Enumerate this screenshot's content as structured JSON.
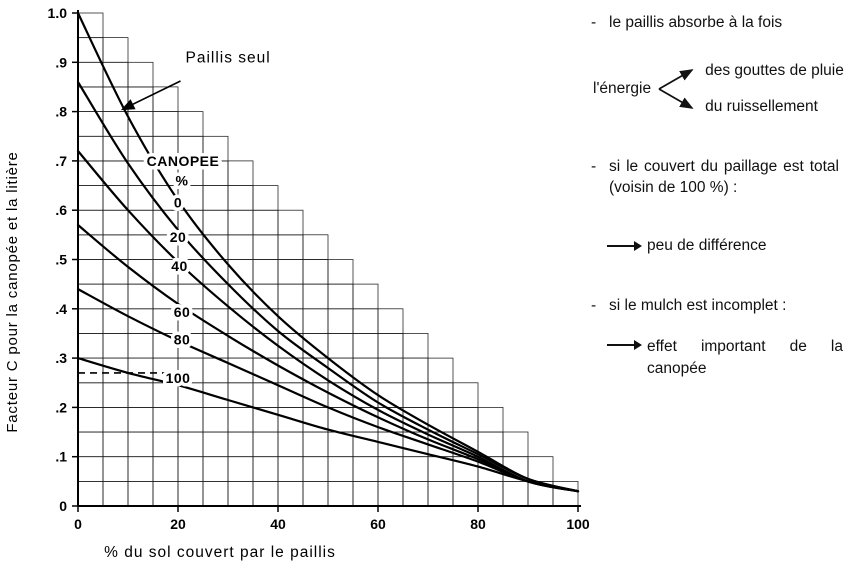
{
  "chart_data": {
    "type": "line",
    "title": "",
    "xlabel": "% du sol couvert par le paillis",
    "ylabel": "Facteur C pour la canopée et la litière",
    "xlim": [
      0,
      100
    ],
    "ylim": [
      0,
      1
    ],
    "grid": {
      "style": "stair-step",
      "x_step": 5,
      "y_step": 0.05
    },
    "x_ticks": {
      "values": [
        0,
        20,
        40,
        60,
        80,
        100
      ],
      "labels": [
        "0",
        "20",
        "40",
        "60",
        "80",
        "100"
      ]
    },
    "y_ticks": {
      "values": [
        0,
        0.1,
        0.2,
        0.3,
        0.4,
        0.5,
        0.6,
        0.7,
        0.8,
        0.9,
        1
      ],
      "labels": [
        "0",
        ".1",
        ".2",
        ".3",
        ".4",
        ".5",
        ".6",
        ".7",
        ".8",
        ".9",
        "1.0"
      ]
    },
    "x": [
      0,
      10,
      20,
      30,
      40,
      50,
      60,
      70,
      80,
      90,
      100
    ],
    "series": [
      {
        "name": "Paillis seul (canopée 0 %)",
        "values": [
          1.0,
          0.79,
          0.62,
          0.49,
          0.385,
          0.3,
          0.225,
          0.165,
          0.11,
          0.055,
          0.03
        ]
      },
      {
        "name": "Canopée 20 %",
        "values": [
          0.86,
          0.695,
          0.56,
          0.45,
          0.355,
          0.28,
          0.21,
          0.155,
          0.105,
          0.055,
          0.03
        ]
      },
      {
        "name": "Canopée 40 %",
        "values": [
          0.72,
          0.6,
          0.495,
          0.405,
          0.325,
          0.255,
          0.195,
          0.145,
          0.1,
          0.05,
          0.03
        ]
      },
      {
        "name": "Canopée 60 %",
        "values": [
          0.57,
          0.485,
          0.41,
          0.345,
          0.285,
          0.23,
          0.18,
          0.135,
          0.095,
          0.05,
          0.03
        ]
      },
      {
        "name": "Canopée 80 %",
        "values": [
          0.44,
          0.385,
          0.335,
          0.29,
          0.245,
          0.2,
          0.16,
          0.125,
          0.09,
          0.05,
          0.03
        ]
      },
      {
        "name": "Canopée 100 %",
        "values": [
          0.3,
          0.27,
          0.245,
          0.215,
          0.185,
          0.155,
          0.13,
          0.105,
          0.08,
          0.05,
          0.03
        ]
      }
    ],
    "curve_label_header": [
      {
        "text": "CANOPEE",
        "x": 21,
        "y": 0.69
      },
      {
        "text": "%",
        "x": 20.8,
        "y": 0.65
      }
    ],
    "curve_labels": [
      {
        "text": "0",
        "x": 20,
        "y": 0.605
      },
      {
        "text": "20",
        "x": 20,
        "y": 0.535
      },
      {
        "text": "40",
        "x": 20.3,
        "y": 0.477
      },
      {
        "text": "60",
        "x": 20.8,
        "y": 0.383
      },
      {
        "text": "80",
        "x": 20.8,
        "y": 0.328
      },
      {
        "text": "100",
        "x": 20,
        "y": 0.25
      }
    ],
    "mulch_only_label": {
      "text": "Paillis seul",
      "x": 21.5,
      "y": 0.9,
      "arrow_from": [
        20.5,
        0.862
      ],
      "arrow_to": [
        9,
        0.805
      ]
    },
    "dashed_guide": {
      "y": 0.27,
      "x_from": 0,
      "x_to": 21
    }
  },
  "panel": {
    "bullet": "-",
    "item1": "le paillis absorbe à la fois",
    "energy": {
      "source": "l'énergie",
      "branch_top": "des gouttes de pluie",
      "branch_bottom": "du ruissellement"
    },
    "item2_line1": "si le couvert du paillage est total",
    "item2_line2": "(voisin de 100 %) :",
    "note1": "peu de différence",
    "item3": "si le mulch est incomplet :",
    "note2_line1": "effet important de la",
    "note2_line2": "canopée"
  }
}
